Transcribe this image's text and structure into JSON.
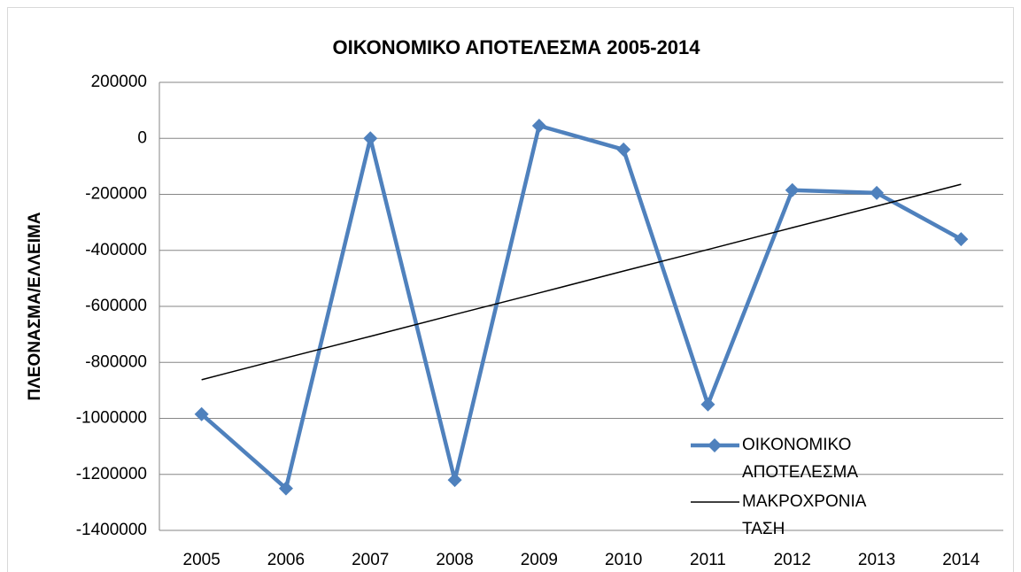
{
  "chart_data": {
    "type": "line",
    "title": "ΟΙΚΟΝΟΜΙΚΟ ΑΠΟΤΕΛΕΣΜΑ 2005-2014",
    "y_label": "ΠΛΕΟΝΑΣΜΑ/ΕΛΛΕΙΜΑ",
    "categories": [
      "2005",
      "2006",
      "2007",
      "2008",
      "2009",
      "2010",
      "2011",
      "2012",
      "2013",
      "2014"
    ],
    "series": [
      {
        "name": "ΟΙΚΟΝΟΜΙΚΟ ΑΠΟΤΕΛΕΣΜΑ",
        "color": "#4f81bd",
        "marker": "diamond",
        "values": [
          -985000,
          -1250000,
          0,
          -1220000,
          45000,
          -40000,
          -950000,
          -185000,
          -195000,
          -360000
        ]
      },
      {
        "name": "ΜΑΚΡΟΧΡΟΝΙΑ ΤΑΣΗ",
        "color": "#000000",
        "values": [
          -862000,
          -784000,
          -707000,
          -629000,
          -552000,
          -474000,
          -397000,
          -319000,
          -242000,
          -164000
        ]
      }
    ],
    "ylim": [
      -1400000,
      200000
    ],
    "yticks": [
      200000,
      0,
      -200000,
      -400000,
      -600000,
      -800000,
      -1000000,
      -1200000,
      -1400000
    ],
    "grid": true
  }
}
